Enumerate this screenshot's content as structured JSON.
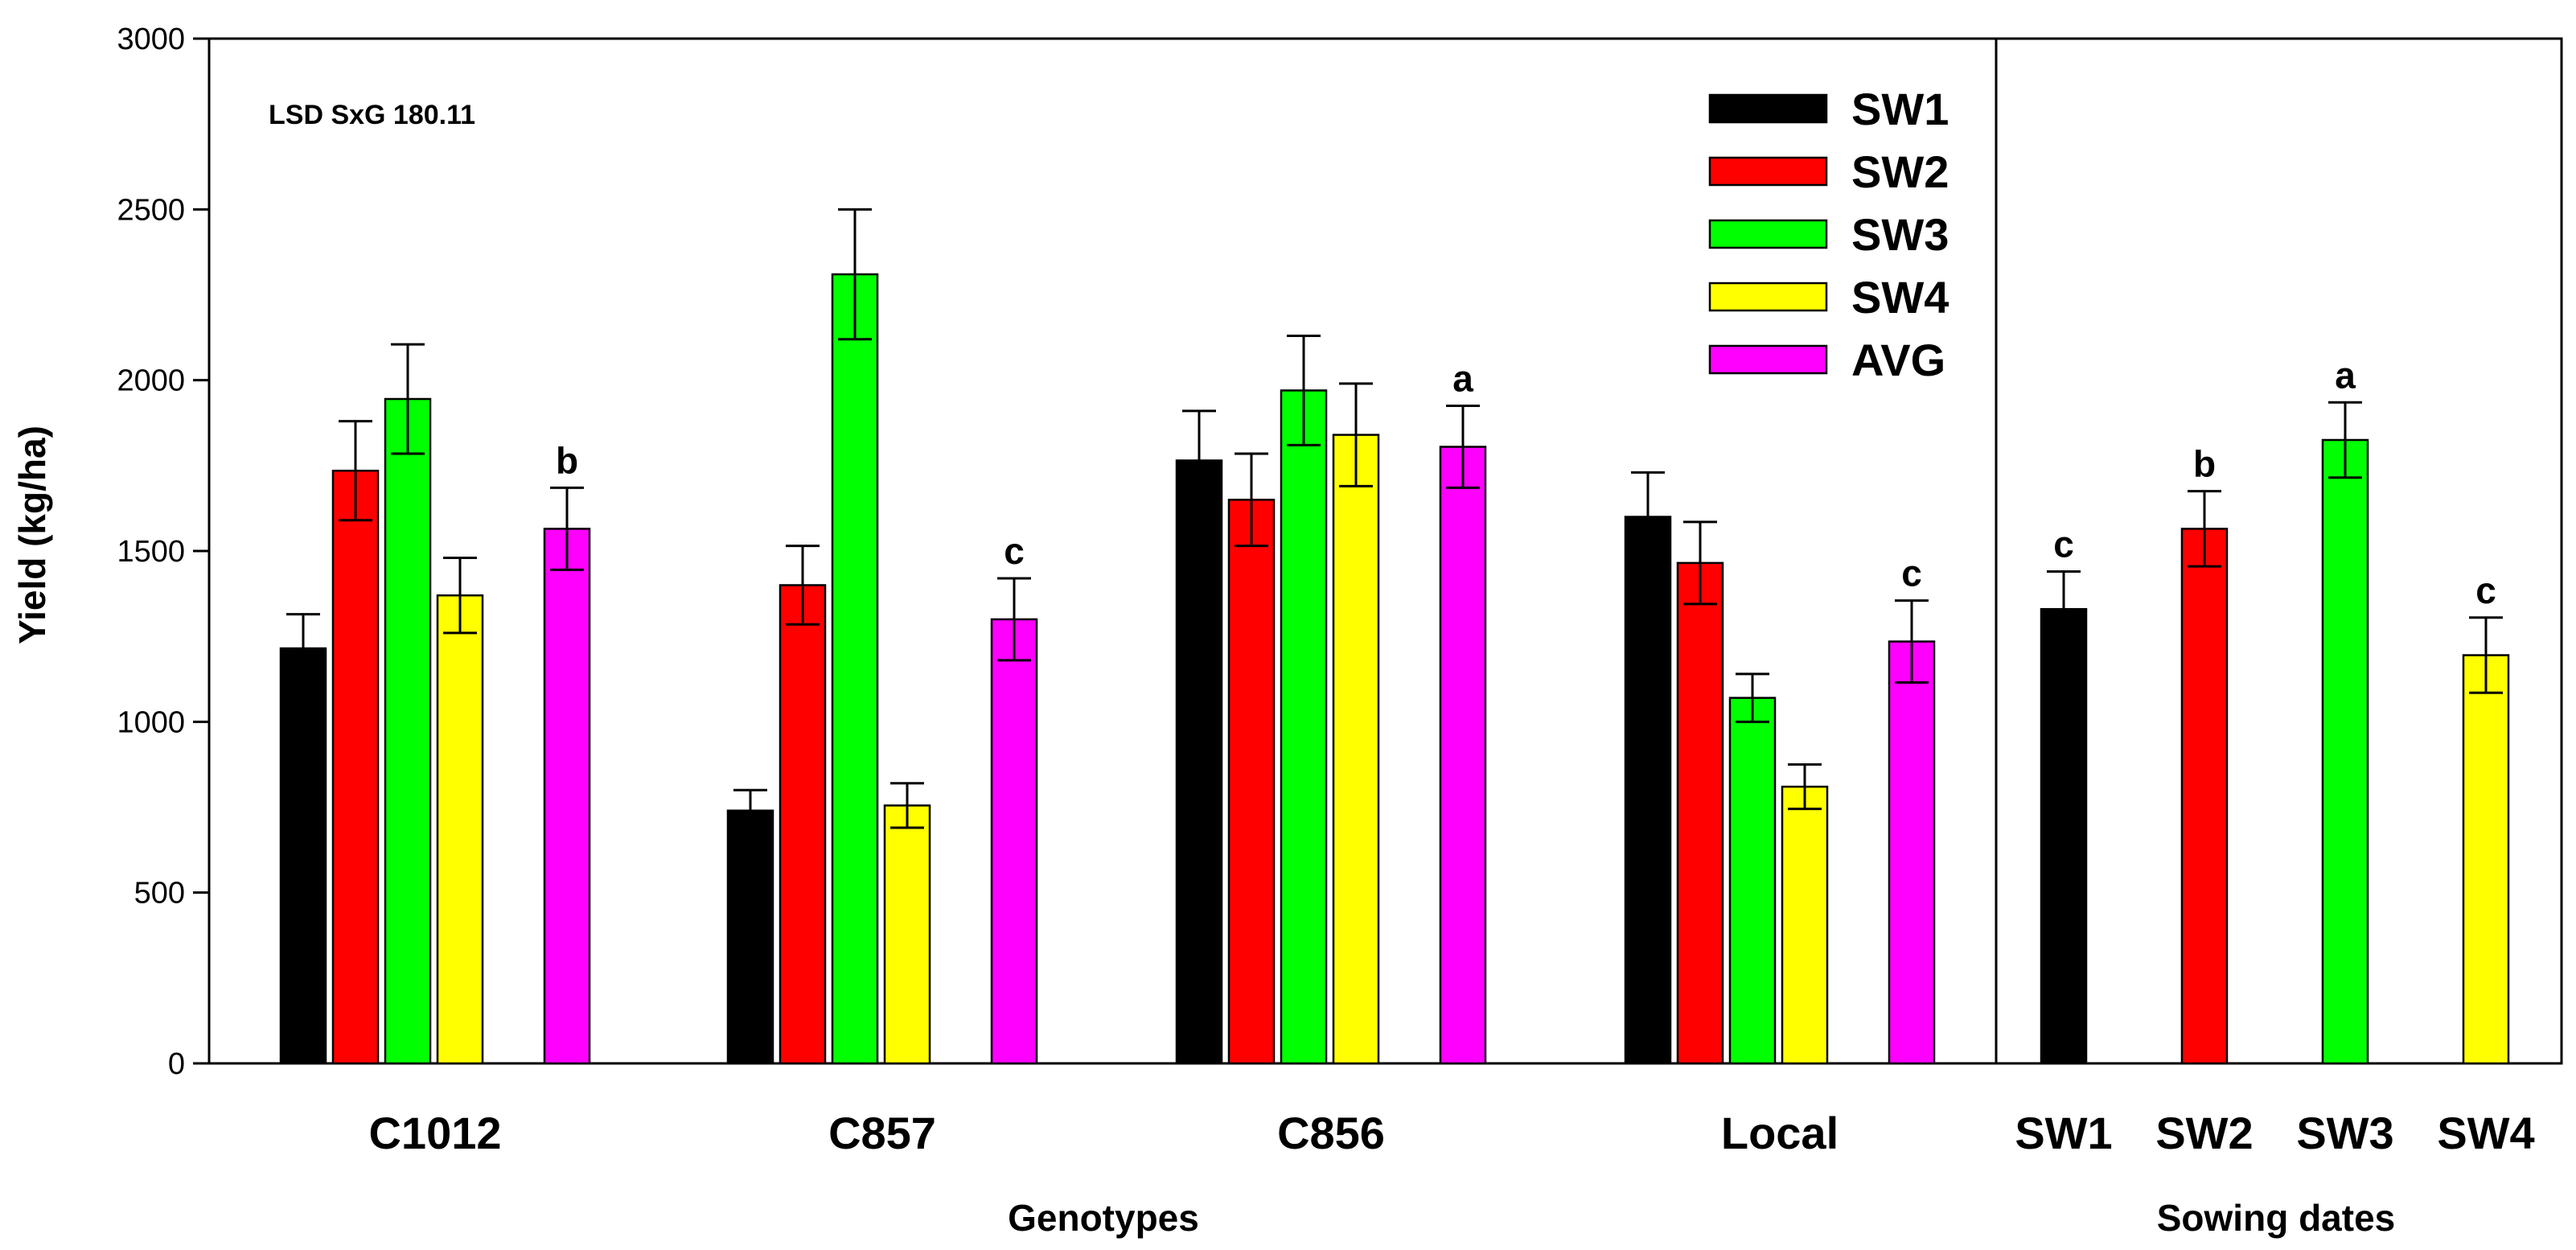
{
  "chart_data": {
    "type": "bar",
    "ylabel": "Yield (kg/ha)",
    "ylim": [
      0,
      3000
    ],
    "yticks": [
      0,
      500,
      1000,
      1500,
      2000,
      2500,
      3000
    ],
    "annotation": "LSD SxG 180.11",
    "colors": {
      "SW1": "#000000",
      "SW2": "#ff0000",
      "SW3": "#00ff00",
      "SW4": "#ffff00",
      "AVG": "#ff00ff"
    },
    "legend": [
      "SW1",
      "SW2",
      "SW3",
      "SW4",
      "AVG"
    ],
    "panels": [
      {
        "name": "genotypes",
        "xlabel": "Genotypes",
        "categories": [
          "C1012",
          "C857",
          "C856",
          "Local"
        ],
        "series": [
          {
            "name": "SW1",
            "values": [
              1215,
              740,
              1765,
              1600
            ],
            "errors": [
              100,
              60,
              145,
              130
            ]
          },
          {
            "name": "SW2",
            "values": [
              1735,
              1400,
              1650,
              1465
            ],
            "errors": [
              145,
              115,
              135,
              120
            ]
          },
          {
            "name": "SW3",
            "values": [
              1945,
              2310,
              1970,
              1070
            ],
            "errors": [
              160,
              190,
              160,
              70
            ]
          },
          {
            "name": "SW4",
            "values": [
              1370,
              755,
              1840,
              810
            ],
            "errors": [
              110,
              65,
              150,
              65
            ]
          },
          {
            "name": "AVG",
            "values": [
              1565,
              1300,
              1805,
              1235
            ],
            "errors": [
              120,
              120,
              120,
              120
            ],
            "labels": [
              "b",
              "c",
              "a",
              "c"
            ]
          }
        ]
      },
      {
        "name": "sowing-dates",
        "xlabel": "Sowing dates",
        "categories": [
          "SW1",
          "SW2",
          "SW3",
          "SW4"
        ],
        "values": [
          1330,
          1565,
          1825,
          1195
        ],
        "errors": [
          110,
          110,
          110,
          110
        ],
        "labels": [
          "c",
          "b",
          "a",
          "c"
        ]
      }
    ]
  }
}
